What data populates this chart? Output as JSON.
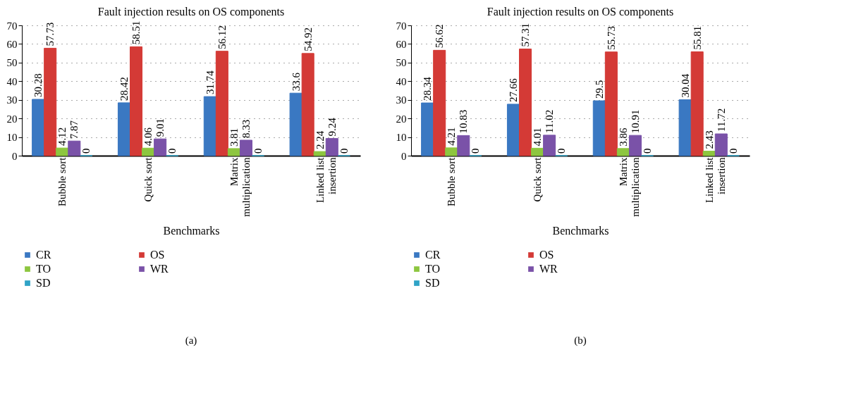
{
  "chart_data": [
    {
      "type": "bar",
      "title": "Fault injection results on OS components",
      "xlabel": "Benchmarks",
      "categories": [
        "Bubble sort",
        "Quick sort",
        "Matrix multiplication",
        "Linked list insertion"
      ],
      "series": [
        {
          "name": "CR",
          "color": "#3a78c2",
          "values": [
            30.28,
            28.42,
            31.74,
            33.6
          ]
        },
        {
          "name": "OS",
          "color": "#d43a36",
          "values": [
            57.73,
            58.51,
            56.12,
            54.92
          ]
        },
        {
          "name": "TO",
          "color": "#8dc63f",
          "values": [
            4.12,
            4.06,
            3.81,
            2.24
          ]
        },
        {
          "name": "WR",
          "color": "#7a52a8",
          "values": [
            7.87,
            9.01,
            8.33,
            9.24
          ]
        },
        {
          "name": "SD",
          "color": "#2fa3c6",
          "values": [
            0,
            0,
            0,
            0
          ]
        }
      ],
      "ylim": [
        0,
        70
      ],
      "yticks": [
        0,
        10,
        20,
        30,
        40,
        50,
        60,
        70
      ],
      "grid": "y",
      "data_labels": true,
      "legend": "bottom",
      "annotations": [
        "(a)"
      ]
    },
    {
      "type": "bar",
      "title": "Fault injection results on OS components",
      "xlabel": "Benchmarks",
      "categories": [
        "Bubble sort",
        "Quick sort",
        "Matrix multiplication",
        "Linked list insertion"
      ],
      "series": [
        {
          "name": "CR",
          "color": "#3a78c2",
          "values": [
            28.34,
            27.66,
            29.5,
            30.04
          ]
        },
        {
          "name": "OS",
          "color": "#d43a36",
          "values": [
            56.62,
            57.31,
            55.73,
            55.81
          ]
        },
        {
          "name": "TO",
          "color": "#8dc63f",
          "values": [
            4.21,
            4.01,
            3.86,
            2.43
          ]
        },
        {
          "name": "WR",
          "color": "#7a52a8",
          "values": [
            10.83,
            11.02,
            10.91,
            11.72
          ]
        },
        {
          "name": "SD",
          "color": "#2fa3c6",
          "values": [
            0,
            0,
            0,
            0
          ]
        }
      ],
      "ylim": [
        0,
        70
      ],
      "yticks": [
        0,
        10,
        20,
        30,
        40,
        50,
        60,
        70
      ],
      "grid": "y",
      "data_labels": true,
      "legend": "bottom",
      "annotations": [
        "(b)"
      ]
    }
  ]
}
